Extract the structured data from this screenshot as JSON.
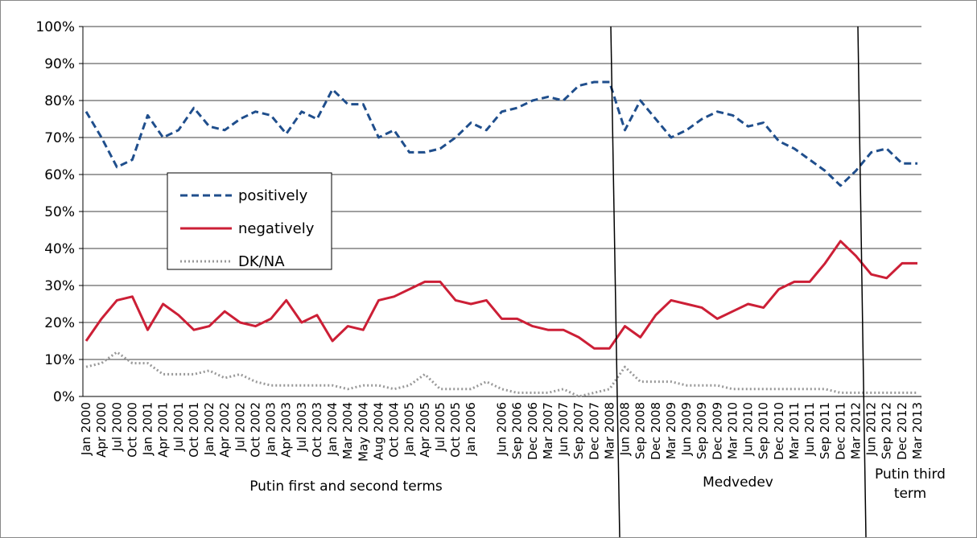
{
  "chart_data": {
    "type": "line",
    "categories": [
      "Jan 2000",
      "Apr 2000",
      "Jul 2000",
      "Oct 2000",
      "Jan 2001",
      "Apr 2001",
      "Jul 2001",
      "Oct 2001",
      "Jan 2002",
      "Apr 2002",
      "Jul 2002",
      "Oct 2002",
      "Jan 2003",
      "Apr 2003",
      "Jul 2003",
      "Oct 2003",
      "Jan 2004",
      "Mar 2004",
      "May 2004",
      "Aug 2004",
      "Oct 2004",
      "Jan 2005",
      "Apr 2005",
      "Jul 2005",
      "Oct 2005",
      "Jan 2006",
      null,
      "Jun 2006",
      "Sep 2006",
      "Dec 2006",
      "Mar 2007",
      "Jun 2007",
      "Sep 2007",
      "Dec 2007",
      "Mar 2008",
      "Jun 2008",
      "Sep 2008",
      "Dec 2008",
      "Mar 2009",
      "Jun 2009",
      "Sep 2009",
      "Dec 2009",
      "Mar 2010",
      "Jun 2010",
      "Sep 2010",
      "Dec 2010",
      "Mar 2011",
      "Jun 2011",
      "Sep 2011",
      "Dec 2011",
      "Mar 2012",
      "Jun 2012",
      "Sep 2012",
      "Dec 2012",
      "Mar 2013"
    ],
    "series": [
      {
        "name": "positively",
        "color": "#1f4e8c",
        "dash": "9 5",
        "values": [
          77,
          70,
          62,
          64,
          76,
          70,
          72,
          78,
          73,
          72,
          75,
          77,
          76,
          71,
          77,
          75,
          83,
          79,
          79,
          70,
          72,
          66,
          66,
          67,
          70,
          74,
          72,
          77,
          78,
          80,
          81,
          80,
          84,
          85,
          85,
          72,
          80,
          75,
          70,
          72,
          75,
          77,
          76,
          73,
          74,
          69,
          67,
          64,
          61,
          57,
          61,
          66,
          67,
          63,
          63
        ]
      },
      {
        "name": "negatively",
        "color": "#cc1f36",
        "dash": "",
        "values": [
          15,
          21,
          26,
          27,
          18,
          25,
          22,
          18,
          19,
          23,
          20,
          19,
          21,
          26,
          20,
          22,
          15,
          19,
          18,
          26,
          27,
          29,
          31,
          31,
          26,
          25,
          26,
          21,
          21,
          19,
          18,
          18,
          16,
          13,
          13,
          19,
          16,
          22,
          26,
          25,
          24,
          21,
          23,
          25,
          24,
          29,
          31,
          31,
          36,
          42,
          38,
          33,
          32,
          36,
          36
        ]
      },
      {
        "name": "DK/NA",
        "color": "#999999",
        "dash": "2 3",
        "values": [
          8,
          9,
          12,
          9,
          9,
          6,
          6,
          6,
          7,
          5,
          6,
          4,
          3,
          3,
          3,
          3,
          3,
          2,
          3,
          3,
          2,
          3,
          6,
          2,
          2,
          2,
          4,
          2,
          1,
          1,
          1,
          2,
          0,
          1,
          2,
          8,
          4,
          4,
          4,
          3,
          3,
          3,
          2,
          2,
          2,
          2,
          2,
          2,
          2,
          1,
          1,
          1,
          1,
          1,
          1
        ]
      }
    ],
    "ylim": [
      0,
      100
    ],
    "yticks": [
      {
        "value": 0,
        "label": "0%"
      },
      {
        "value": 10,
        "label": "10%"
      },
      {
        "value": 20,
        "label": "20%"
      },
      {
        "value": 30,
        "label": "30%"
      },
      {
        "value": 40,
        "label": "40%"
      },
      {
        "value": 50,
        "label": "50%"
      },
      {
        "value": 60,
        "label": "60%"
      },
      {
        "value": 70,
        "label": "70%"
      },
      {
        "value": 80,
        "label": "80%"
      },
      {
        "value": 90,
        "label": "90%"
      },
      {
        "value": 100,
        "label": "100%"
      }
    ],
    "grid": true,
    "annotations": [
      {
        "lines": [
          "Putin first and second terms"
        ]
      },
      {
        "lines": [
          "Medvedev"
        ]
      },
      {
        "lines": [
          "Putin third",
          "term"
        ]
      }
    ]
  }
}
